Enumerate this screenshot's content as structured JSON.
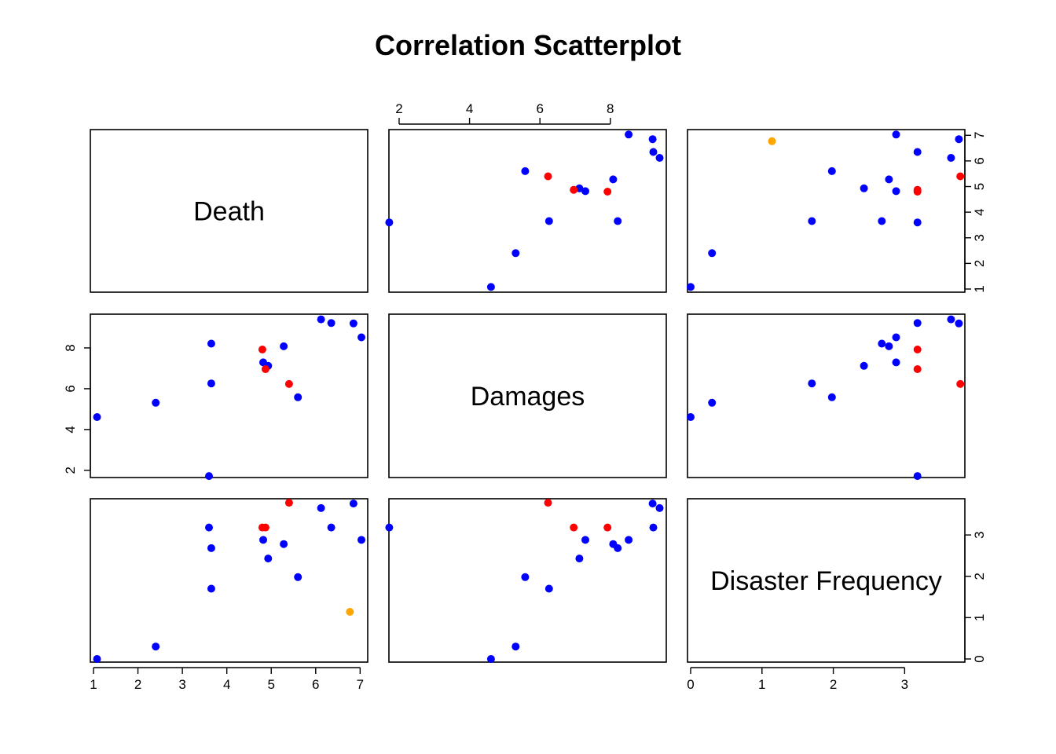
{
  "chart_data": {
    "type": "scatter",
    "title": "Correlation Scatterplot",
    "variables": [
      "Death",
      "Damages",
      "Disaster Frequency"
    ],
    "ranges": {
      "Death": [
        1.0,
        7.1
      ],
      "Damages": [
        1.8,
        9.5
      ],
      "Disaster Frequency": [
        0.0,
        3.8
      ]
    },
    "ticks": {
      "Death": [
        1,
        2,
        3,
        4,
        5,
        6,
        7
      ],
      "Damages": [
        2,
        4,
        6,
        8
      ],
      "Disaster Frequency": [
        0,
        1,
        2,
        3
      ]
    },
    "color_key": {
      "blue": "#0000ff",
      "red": "#ff0000",
      "orange": "#ffa500"
    },
    "points": [
      {
        "Death": 1.08,
        "Damages": 4.61,
        "Disaster Frequency": 0.0,
        "color": "blue"
      },
      {
        "Death": 2.4,
        "Damages": 5.31,
        "Disaster Frequency": 0.3,
        "color": "blue"
      },
      {
        "Death": 3.6,
        "Damages": 1.72,
        "Disaster Frequency": 3.18,
        "color": "blue"
      },
      {
        "Death": 3.65,
        "Damages": 6.26,
        "Disaster Frequency": 1.7,
        "color": "blue"
      },
      {
        "Death": 3.65,
        "Damages": 8.21,
        "Disaster Frequency": 2.68,
        "color": "blue"
      },
      {
        "Death": 4.82,
        "Damages": 7.29,
        "Disaster Frequency": 2.88,
        "color": "blue"
      },
      {
        "Death": 4.93,
        "Damages": 7.12,
        "Disaster Frequency": 2.43,
        "color": "blue"
      },
      {
        "Death": 5.28,
        "Damages": 8.08,
        "Disaster Frequency": 2.78,
        "color": "blue"
      },
      {
        "Death": 6.12,
        "Damages": 9.4,
        "Disaster Frequency": 3.65,
        "color": "blue"
      },
      {
        "Death": 6.35,
        "Damages": 9.22,
        "Disaster Frequency": 3.18,
        "color": "blue"
      },
      {
        "Death": 6.85,
        "Damages": 9.2,
        "Disaster Frequency": 3.76,
        "color": "blue"
      },
      {
        "Death": 7.03,
        "Damages": 8.52,
        "Disaster Frequency": 2.88,
        "color": "blue"
      },
      {
        "Death": 5.6,
        "Damages": 5.58,
        "Disaster Frequency": 1.98,
        "color": "blue"
      },
      {
        "Death": 4.8,
        "Damages": 7.92,
        "Disaster Frequency": 3.18,
        "color": "red"
      },
      {
        "Death": 4.87,
        "Damages": 6.96,
        "Disaster Frequency": 3.18,
        "color": "red"
      },
      {
        "Death": 5.4,
        "Damages": 6.23,
        "Disaster Frequency": 3.78,
        "color": "red"
      },
      {
        "Death": 6.77,
        "Damages": null,
        "Disaster Frequency": 1.14,
        "color": "orange"
      }
    ]
  }
}
